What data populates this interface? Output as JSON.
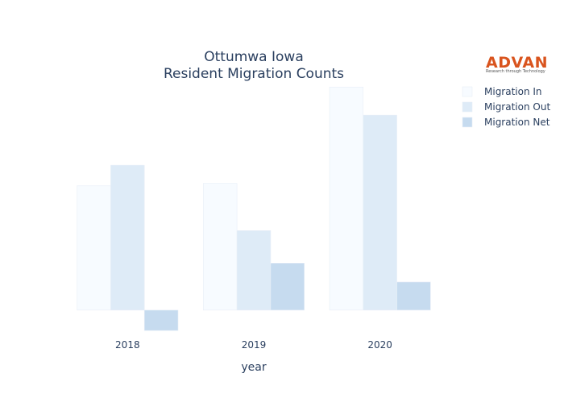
{
  "chart_data": {
    "type": "bar",
    "title": [
      "Ottumwa Iowa",
      "Resident Migration Counts"
    ],
    "xlabel": "year",
    "ylabel": "",
    "categories": [
      "2018",
      "2019",
      "2020"
    ],
    "series": [
      {
        "name": "Migration In",
        "values": [
          1220,
          1240,
          2185
        ],
        "color": "#f7fbff"
      },
      {
        "name": "Migration Out",
        "values": [
          1420,
          780,
          1910
        ],
        "color": "#deebf7"
      },
      {
        "name": "Migration Net",
        "values": [
          -200,
          460,
          275
        ],
        "color": "#c6dbef"
      }
    ],
    "ylim": [
      -270,
      2250
    ],
    "yaxis_visible": false,
    "grid": false,
    "legend_position": "top-right"
  },
  "logo": {
    "name": "ADVAN",
    "tagline": "Research through Technology",
    "color": "#d9541e"
  }
}
